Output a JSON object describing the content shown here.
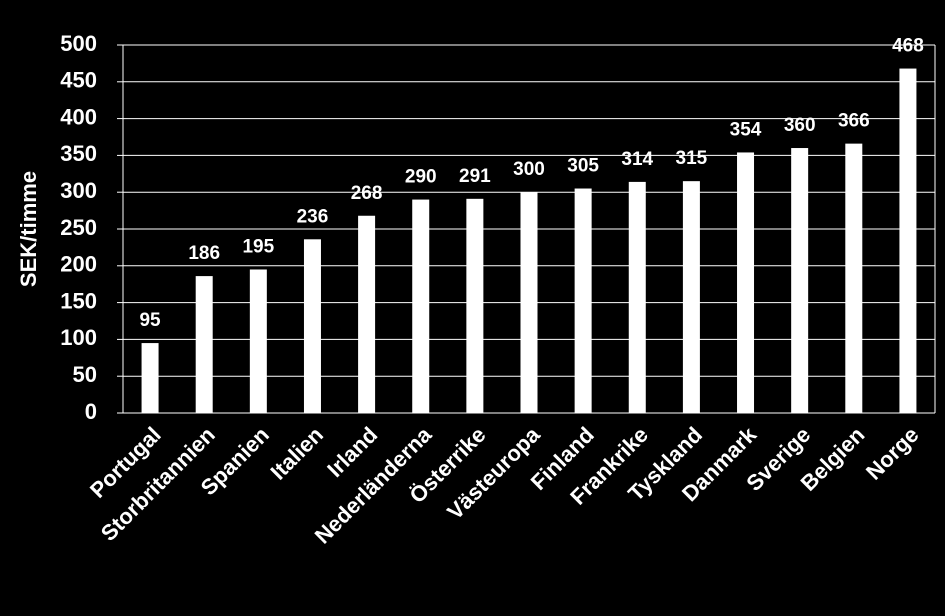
{
  "chart_data": {
    "type": "bar",
    "y_label": "SEK/timme",
    "categories": [
      "Portugal",
      "Storbritannien",
      "Spanien",
      "Italien",
      "Irland",
      "Nederländerna",
      "Österrike",
      "Västeuropa",
      "Finland",
      "Frankrike",
      "Tyskland",
      "Danmark",
      "Sverige",
      "Belgien",
      "Norge"
    ],
    "values": [
      95,
      186,
      195,
      236,
      268,
      290,
      291,
      300,
      305,
      314,
      315,
      354,
      360,
      366,
      468
    ],
    "color": "#ffffff",
    "ylim": [
      0,
      500
    ],
    "yticks": [
      0,
      50,
      100,
      150,
      200,
      250,
      300,
      350,
      400,
      450,
      500
    ],
    "grid": true
  }
}
